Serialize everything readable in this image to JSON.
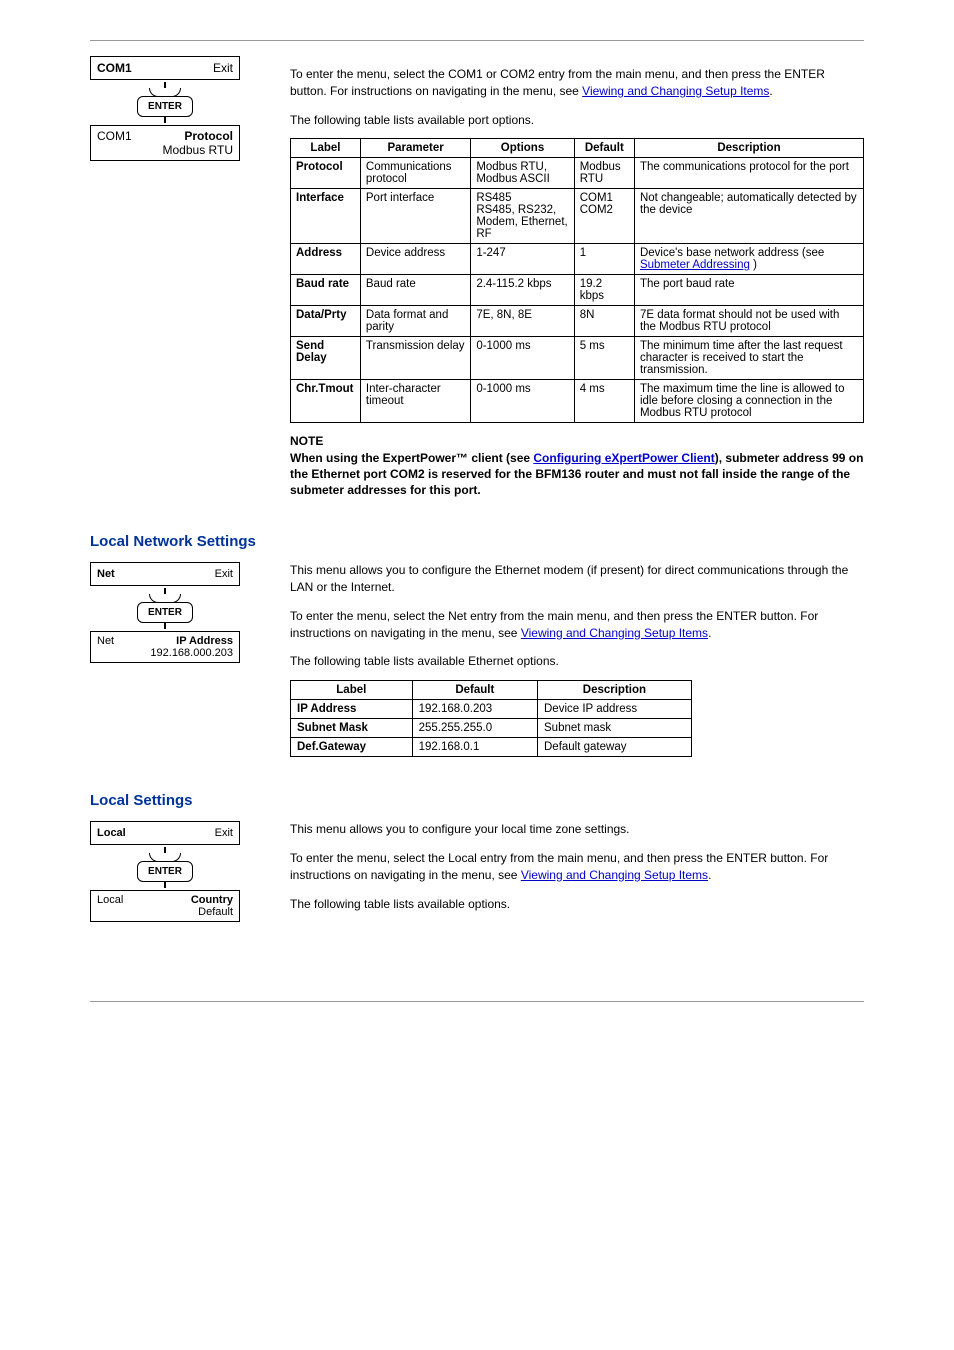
{
  "page": {
    "intro1": "To enter the menu, select the COM1 or COM2 entry from the main menu, and then press the ENTER button. For instructions on navigating in the menu, see ",
    "intro1_link": "Viewing and Changing Setup Items",
    "intro1_end": ".",
    "intro2": "The following table lists available port options."
  },
  "diagram1": {
    "top_left": "COM1",
    "top_right": "Exit",
    "enter": "ENTER",
    "bottom_left": "COM1",
    "bottom_right1": "Protocol",
    "bottom_right2": "Modbus RTU"
  },
  "table1": {
    "headers": [
      "Label",
      "Parameter",
      "Options",
      "Default",
      "Description"
    ],
    "rows": [
      [
        "Protocol",
        "Communications protocol",
        "Modbus RTU, Modbus ASCII",
        "Modbus RTU",
        "The communications protocol for the port"
      ],
      [
        "Interface",
        "Port interface",
        "RS485\nRS485, RS232, Modem, Ethernet, RF",
        "COM1\nCOM2",
        "Not changeable; automatically detected by the device"
      ],
      [
        "Address",
        "Device address",
        "1-247",
        "1",
        "Device's base network address (see __LINK__ )"
      ],
      [
        "Baud rate",
        "Baud rate",
        "2.4-115.2 kbps",
        "19.2 kbps",
        "The port baud rate"
      ],
      [
        "Data/Prty",
        "Data format and parity",
        "7E, 8N, 8E",
        "8N",
        "7E data format should not be used with the Modbus RTU protocol"
      ],
      [
        "Send Delay",
        "Transmission delay",
        "0-1000 ms",
        "5 ms",
        "The minimum time after the last request character is received to start the transmission."
      ],
      [
        "Chr.Tmout",
        "Inter-character timeout",
        "0-1000 ms",
        "4 ms",
        "The maximum time the line is allowed to idle before closing a connection in the Modbus RTU protocol"
      ]
    ],
    "address_link": "Submeter Addressing"
  },
  "note": {
    "title": "NOTE",
    "body_pre": "When using the ExpertPower™ client (see ",
    "body_link": "Configuring eXpertPower Client",
    "body_post": "), submeter address 99 on the Ethernet port COM2 is reserved for the BFM136 router and must not fall inside the range of the submeter addresses for this port."
  },
  "section_net": {
    "title": "Local Network Settings",
    "intro1": "This menu allows you to configure the Ethernet modem (if present) for direct communications through the LAN or the Internet.",
    "intro2_pre": "To enter the menu, select the Net entry from the main menu, and then press the ENTER button. For instructions on navigating in the menu, see ",
    "intro2_link": "Viewing and Changing Setup Items",
    "intro2_post": ".",
    "intro3": "The following table lists available Ethernet options."
  },
  "diagram2": {
    "top_left": "Net",
    "top_right": "Exit",
    "enter": "ENTER",
    "bottom_left": "Net",
    "bottom_right1": "IP Address",
    "bottom_right2": "192.168.000.203"
  },
  "table2": {
    "headers": [
      "Label",
      "Default",
      "Description"
    ],
    "rows": [
      [
        "IP Address",
        "192.168.0.203",
        "Device IP address"
      ],
      [
        "Subnet Mask",
        "255.255.255.0",
        "Subnet mask"
      ],
      [
        "Def.Gateway",
        "192.168.0.1",
        "Default gateway"
      ]
    ]
  },
  "section_local": {
    "title": "Local Settings",
    "intro1": "This menu allows you to configure your local time zone settings.",
    "intro2_pre": "To enter the menu, select the Local entry from the main menu, and then press the ENTER button. For instructions on navigating in the menu, see ",
    "intro2_link": "Viewing and Changing Setup Items",
    "intro2_post": ".",
    "intro3": "The following table lists available options."
  },
  "diagram3": {
    "top_left": "Local",
    "top_right": "Exit",
    "enter": "ENTER",
    "bottom_left": "Local",
    "bottom_right1": "Country",
    "bottom_right2": "Default"
  }
}
